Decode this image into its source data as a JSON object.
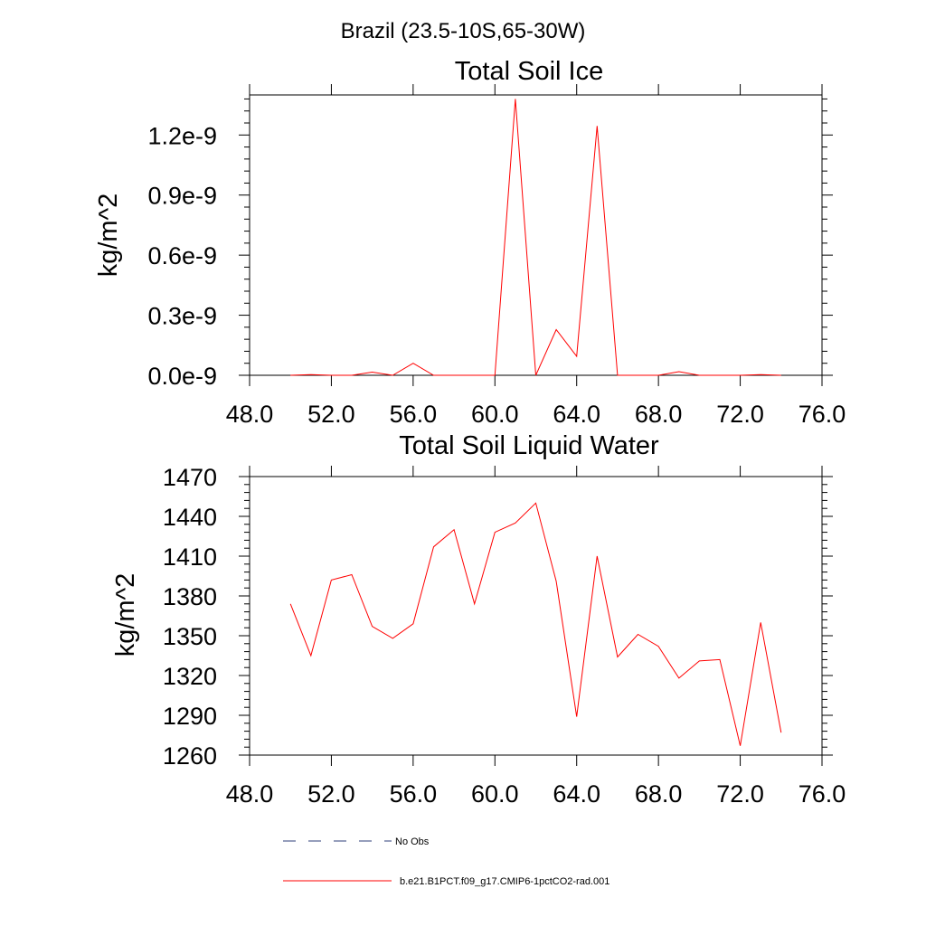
{
  "page_title": "Brazil (23.5-10S,65-30W)",
  "colors": {
    "model_line": "#ff0000",
    "obs_line": "#2c3e78",
    "axis": "#000000"
  },
  "legend": {
    "obs_label": "No Obs",
    "model_label": "b.e21.B1PCT.f09_g17.CMIP6-1pctCO2-rad.001"
  },
  "chart_data": [
    {
      "type": "line",
      "title": "Total Soil Ice",
      "xlabel": "",
      "ylabel": "kg/m^2",
      "xlim": [
        48,
        76
      ],
      "ylim": [
        0,
        1.4e-09
      ],
      "xticks": [
        48,
        52,
        56,
        60,
        64,
        68,
        72,
        76
      ],
      "xtick_labels": [
        "48.0",
        "52.0",
        "56.0",
        "60.0",
        "64.0",
        "68.0",
        "72.0",
        "76.0"
      ],
      "yticks": [
        0,
        3e-10,
        6e-10,
        9e-10,
        1.2e-09
      ],
      "ytick_labels": [
        "0.0e-9",
        "0.3e-9",
        "0.6e-9",
        "0.9e-9",
        "1.2e-9"
      ],
      "grid": false,
      "series": [
        {
          "name": "b.e21.B1PCT.f09_g17.CMIP6-1pctCO2-rad.001",
          "x": [
            50,
            51,
            52,
            53,
            54,
            55,
            56,
            57,
            58,
            59,
            60,
            61,
            62,
            63,
            64,
            65,
            66,
            67,
            68,
            69,
            70,
            71,
            72,
            73,
            74
          ],
          "values": [
            0,
            3e-12,
            0,
            0,
            1.6e-11,
            0,
            6e-11,
            0,
            0,
            0,
            0,
            1.38e-09,
            0,
            2.28e-10,
            9.5e-11,
            1.245e-09,
            0,
            0,
            0,
            1.8e-11,
            0,
            0,
            0,
            3e-12,
            0
          ]
        }
      ]
    },
    {
      "type": "line",
      "title": "Total Soil Liquid Water",
      "xlabel": "",
      "ylabel": "kg/m^2",
      "xlim": [
        48,
        76
      ],
      "ylim": [
        1260,
        1470
      ],
      "xticks": [
        48,
        52,
        56,
        60,
        64,
        68,
        72,
        76
      ],
      "xtick_labels": [
        "48.0",
        "52.0",
        "56.0",
        "60.0",
        "64.0",
        "68.0",
        "72.0",
        "76.0"
      ],
      "yticks": [
        1260,
        1290,
        1320,
        1350,
        1380,
        1410,
        1440,
        1470
      ],
      "ytick_labels": [
        "1260",
        "1290",
        "1320",
        "1350",
        "1380",
        "1410",
        "1440",
        "1470"
      ],
      "grid": false,
      "series": [
        {
          "name": "b.e21.B1PCT.f09_g17.CMIP6-1pctCO2-rad.001",
          "x": [
            50,
            51,
            52,
            53,
            54,
            55,
            56,
            57,
            58,
            59,
            60,
            61,
            62,
            63,
            64,
            65,
            66,
            67,
            68,
            69,
            70,
            71,
            72,
            73,
            74
          ],
          "values": [
            1374,
            1335,
            1392,
            1396,
            1357,
            1348,
            1359,
            1417,
            1430,
            1374,
            1428,
            1435,
            1450,
            1391,
            1289,
            1410,
            1334,
            1351,
            1342,
            1318,
            1331,
            1332,
            1267,
            1360,
            1277
          ]
        }
      ]
    }
  ]
}
